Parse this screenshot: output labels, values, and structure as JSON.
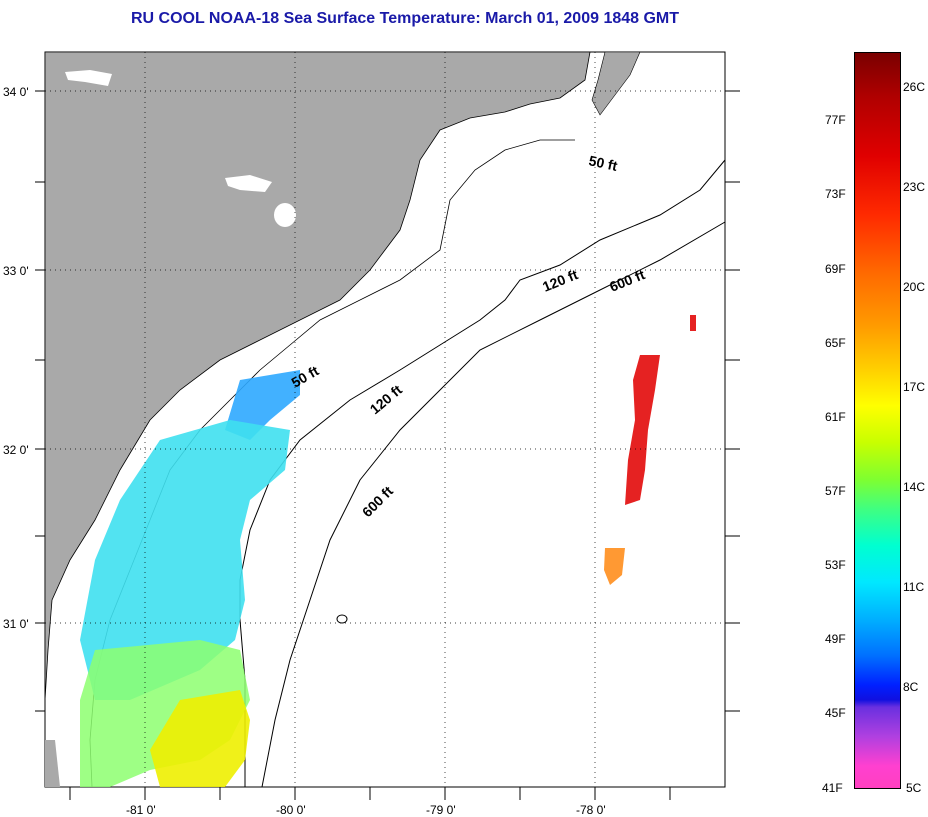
{
  "title": "RU COOL  NOAA-18  Sea Surface Temperature:  March 01, 2009 1848 GMT",
  "lat_labels": [
    "34 0'",
    "33 0'",
    "32 0'",
    "31 0'"
  ],
  "lon_labels": [
    "-81 0'",
    "-80 0'",
    "-79 0'",
    "-78 0'"
  ],
  "contours": [
    "50 ft",
    "120 ft",
    "600 ft",
    "50 ft",
    "120 ft",
    "600 ft"
  ],
  "colorbar": {
    "fahrenheit": [
      "77F",
      "73F",
      "69F",
      "65F",
      "61F",
      "57F",
      "53F",
      "49F",
      "45F",
      "41F"
    ],
    "celsius": [
      "26C",
      "23C",
      "20C",
      "17C",
      "14C",
      "11C",
      "8C",
      "5C"
    ]
  },
  "colors": {
    "land": "#a9a9a9",
    "title": "#1a1aa8"
  }
}
